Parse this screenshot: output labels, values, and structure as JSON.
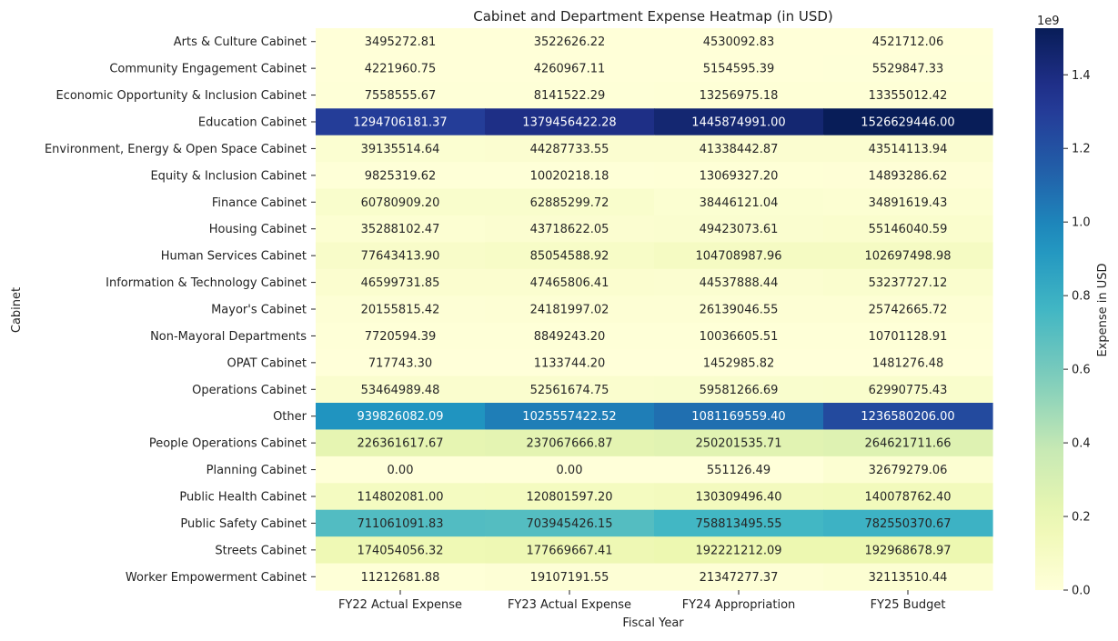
{
  "chart_data": {
    "type": "heatmap",
    "title": "Cabinet and Department Expense Heatmap (in USD)",
    "xlabel": "Fiscal Year",
    "ylabel": "Cabinet",
    "x_categories": [
      "FY22 Actual Expense",
      "FY23 Actual Expense",
      "FY24 Appropriation",
      "FY25 Budget"
    ],
    "y_categories": [
      "Arts & Culture Cabinet",
      "Community Engagement Cabinet",
      "Economic Opportunity & Inclusion Cabinet",
      "Education Cabinet",
      "Environment, Energy & Open Space Cabinet",
      "Equity & Inclusion Cabinet",
      "Finance Cabinet",
      "Housing Cabinet",
      "Human Services Cabinet",
      "Information & Technology Cabinet",
      "Mayor's Cabinet",
      "Non-Mayoral Departments",
      "OPAT Cabinet",
      "Operations Cabinet",
      "Other",
      "People Operations Cabinet",
      "Planning Cabinet",
      "Public Health Cabinet",
      "Public Safety Cabinet",
      "Streets Cabinet",
      "Worker Empowerment Cabinet"
    ],
    "values": [
      [
        3495272.81,
        3522626.22,
        4530092.83,
        4521712.06
      ],
      [
        4221960.75,
        4260967.11,
        5154595.39,
        5529847.33
      ],
      [
        7558555.67,
        8141522.29,
        13256975.18,
        13355012.42
      ],
      [
        1294706181.37,
        1379456422.28,
        1445874991.0,
        1526629446.0
      ],
      [
        39135514.64,
        44287733.55,
        41338442.87,
        43514113.94
      ],
      [
        9825319.62,
        10020218.18,
        13069327.2,
        14893286.62
      ],
      [
        60780909.2,
        62885299.72,
        38446121.04,
        34891619.43
      ],
      [
        35288102.47,
        43718622.05,
        49423073.61,
        55146040.59
      ],
      [
        77643413.9,
        85054588.92,
        104708987.96,
        102697498.98
      ],
      [
        46599731.85,
        47465806.41,
        44537888.44,
        53237727.12
      ],
      [
        20155815.42,
        24181997.02,
        26139046.55,
        25742665.72
      ],
      [
        7720594.39,
        8849243.2,
        10036605.51,
        10701128.91
      ],
      [
        717743.3,
        1133744.2,
        1452985.82,
        1481276.48
      ],
      [
        53464989.48,
        52561674.75,
        59581266.69,
        62990775.43
      ],
      [
        939826082.09,
        1025557422.52,
        1081169559.4,
        1236580206.0
      ],
      [
        226361617.67,
        237067666.87,
        250201535.71,
        264621711.66
      ],
      [
        0.0,
        0.0,
        551126.49,
        32679279.06
      ],
      [
        114802081.0,
        120801597.2,
        130309496.4,
        140078762.4
      ],
      [
        711061091.83,
        703945426.15,
        758813495.55,
        782550370.67
      ],
      [
        174054056.32,
        177669667.41,
        192221212.09,
        192968678.97
      ],
      [
        11212681.88,
        19107191.55,
        21347277.37,
        32113510.44
      ]
    ],
    "colorbar": {
      "label": "Expense in USD",
      "offset_label": "1e9",
      "ticks": [
        "0.0",
        "0.2",
        "0.4",
        "0.6",
        "0.8",
        "1.0",
        "1.2",
        "1.4"
      ],
      "tick_values": [
        0.0,
        0.2,
        0.4,
        0.6,
        0.8,
        1.0,
        1.2,
        1.4
      ],
      "scale": 1000000000,
      "vmin": 0,
      "vmax": 1526629446.0,
      "colormap": "YlGnBu"
    },
    "annotations_format": "fixed-2-decimals"
  }
}
